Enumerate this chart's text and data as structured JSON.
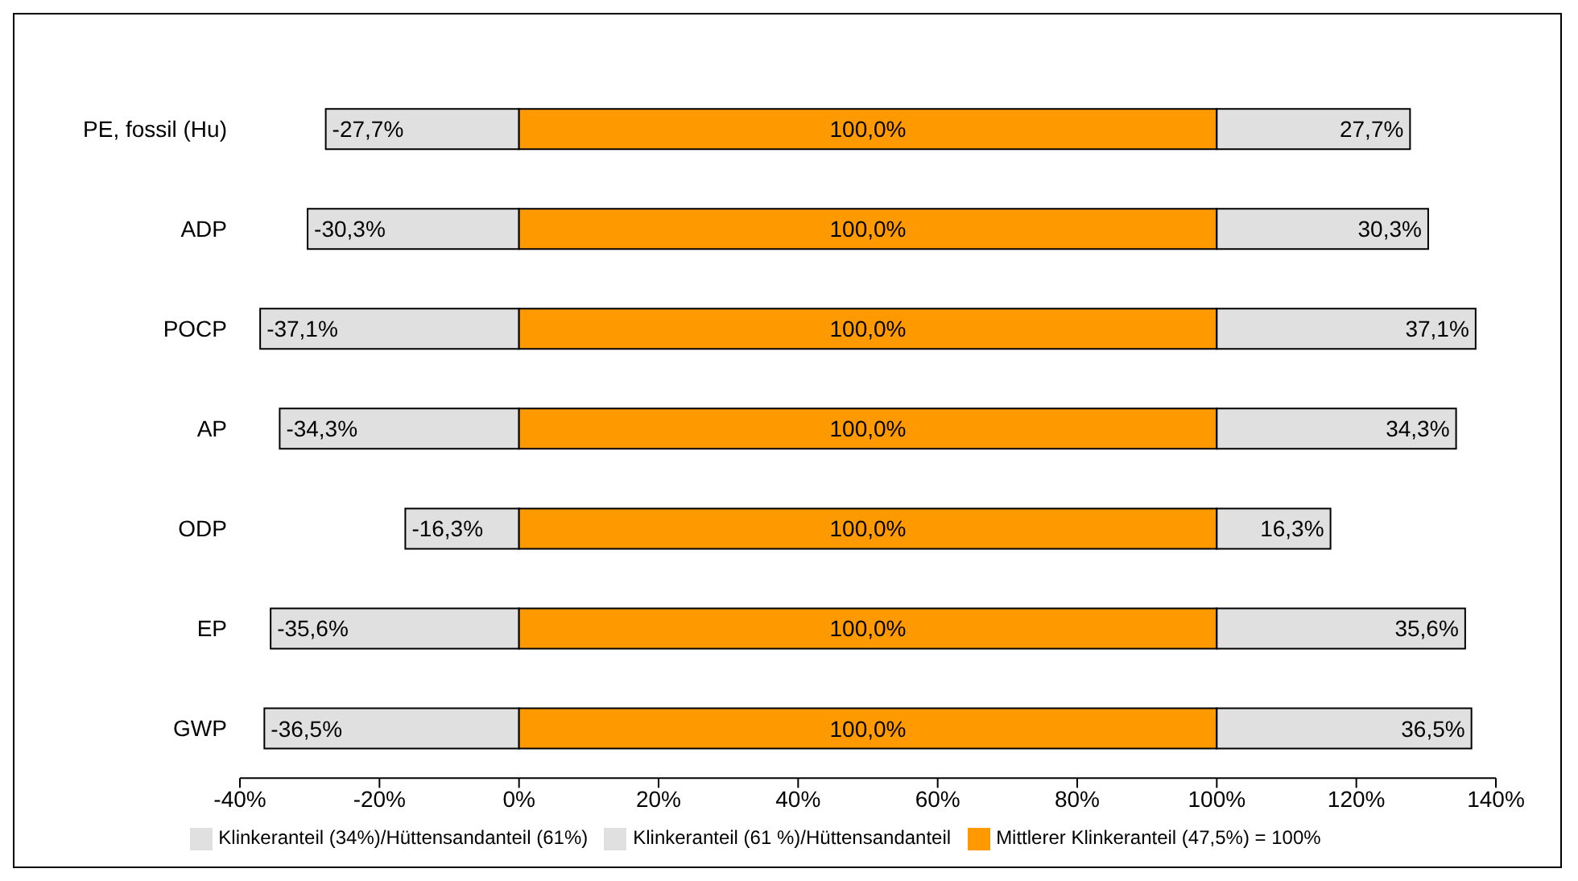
{
  "chart_data": {
    "type": "bar",
    "orientation": "horizontal",
    "stacked": true,
    "categories": [
      "PE, fossil (Hu)",
      "ADP",
      "POCP",
      "AP",
      "ODP",
      "EP",
      "GWP"
    ],
    "series": [
      {
        "name": "Klinkeranteil (34%)/Hüttensandanteil (61%)",
        "color": "#e0e0e0",
        "values": [
          -27.7,
          -30.3,
          -37.1,
          -34.3,
          -16.3,
          -35.6,
          -36.5
        ],
        "value_labels": [
          "-27,7%",
          "-30,3%",
          "-37,1%",
          "-34,3%",
          "-16,3%",
          "-35,6%",
          "-36,5%"
        ]
      },
      {
        "name": "Mittlerer Klinkeranteil (47,5%) = 100%",
        "color": "#ff9900",
        "values": [
          100,
          100,
          100,
          100,
          100,
          100,
          100
        ],
        "value_labels": [
          "100,0%",
          "100,0%",
          "100,0%",
          "100,0%",
          "100,0%",
          "100,0%",
          "100,0%"
        ]
      },
      {
        "name": "Klinkeranteil (61 %)/Hüttensandanteil",
        "color": "#e0e0e0",
        "values": [
          27.7,
          30.3,
          37.1,
          34.3,
          16.3,
          35.6,
          36.5
        ],
        "value_labels": [
          "27,7%",
          "30,3%",
          "37,1%",
          "34,3%",
          "16,3%",
          "35,6%",
          "36,5%"
        ]
      }
    ],
    "xlim": [
      -40,
      140
    ],
    "xticks": [
      {
        "value": -40,
        "label": "-40%"
      },
      {
        "value": -20,
        "label": "-20%"
      },
      {
        "value": 0,
        "label": "0%"
      },
      {
        "value": 20,
        "label": "20%"
      },
      {
        "value": 40,
        "label": "40%"
      },
      {
        "value": 60,
        "label": "60%"
      },
      {
        "value": 80,
        "label": "80%"
      },
      {
        "value": 100,
        "label": "100%"
      },
      {
        "value": 120,
        "label": "120%"
      },
      {
        "value": 140,
        "label": "140%"
      }
    ],
    "legend": "bottom",
    "grid": false
  }
}
